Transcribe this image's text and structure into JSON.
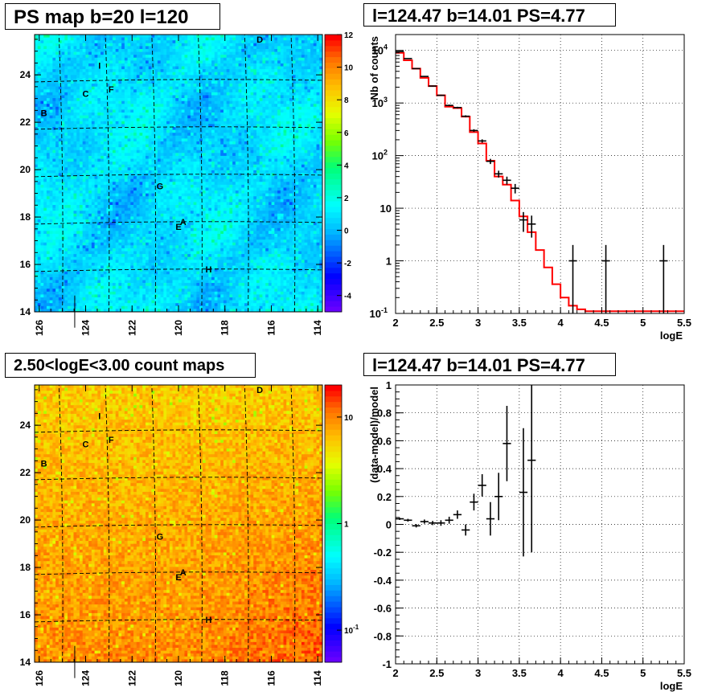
{
  "titles": {
    "top_left": "PS map b=20 l=120",
    "top_right": "l=124.47 b=14.01 PS=4.77",
    "bottom_left": "2.50<logE<3.00 count maps",
    "bottom_right": "l=124.47 b=14.01 PS=4.77"
  },
  "chart_data": [
    {
      "type": "heatmap",
      "title": "PS map b=20 l=120",
      "x_ticks": [
        "126",
        "124",
        "122",
        "120",
        "118",
        "116",
        "114"
      ],
      "y_ticks": [
        "14",
        "16",
        "18",
        "20",
        "22",
        "24"
      ],
      "xlim": [
        126.2,
        113.8
      ],
      "ylim": [
        14,
        25.7
      ],
      "colorbar": {
        "ticks": [
          "12",
          "10",
          "8",
          "6",
          "4",
          "2",
          "0",
          "-2",
          "-4"
        ],
        "range": [
          -5,
          12
        ],
        "scale": "linear"
      },
      "source_labels": [
        {
          "name": "D",
          "l": 116.5,
          "b": 25.5
        },
        {
          "name": "I",
          "l": 123.4,
          "b": 24.4
        },
        {
          "name": "F",
          "l": 122.9,
          "b": 23.4
        },
        {
          "name": "C",
          "l": 124.0,
          "b": 23.2
        },
        {
          "name": "B",
          "l": 125.8,
          "b": 22.4
        },
        {
          "name": "G",
          "l": 120.8,
          "b": 19.3
        },
        {
          "name": "A",
          "l": 119.8,
          "b": 17.8
        },
        {
          "name": "E",
          "l": 120.0,
          "b": 17.6
        },
        {
          "name": "H",
          "l": 118.7,
          "b": 15.8
        }
      ],
      "marker": {
        "l": 124.47,
        "b": 14.01
      }
    },
    {
      "type": "line",
      "title": "l=124.47 b=14.01 PS=4.77",
      "xlabel": "logE",
      "ylabel": "Nb of counts",
      "xlim": [
        2,
        5.5
      ],
      "ylim": [
        0.1,
        20000
      ],
      "yscale": "log",
      "grid": true,
      "x_ticks": [
        "2",
        "2.5",
        "3",
        "3.5",
        "4",
        "4.5",
        "5",
        "5.5"
      ],
      "y_ticks": [
        "10^4",
        "10^3",
        "10^2",
        "10",
        "1",
        "10^-1"
      ],
      "series": [
        {
          "type": "errorbar",
          "x": [
            2.05,
            2.15,
            2.25,
            2.35,
            2.45,
            2.55,
            2.65,
            2.75,
            2.85,
            2.95,
            3.05,
            3.15,
            3.25,
            3.35,
            3.45,
            3.55,
            3.65,
            4.15,
            4.55,
            5.25
          ],
          "y": [
            9500,
            7000,
            4500,
            3200,
            2100,
            1400,
            900,
            820,
            560,
            300,
            190,
            78,
            45,
            34,
            24,
            6,
            5,
            1,
            1,
            1
          ]
        },
        {
          "type": "step",
          "color": "#ff0000",
          "x": [
            2.0,
            2.1,
            2.2,
            2.3,
            2.4,
            2.5,
            2.6,
            2.7,
            2.8,
            2.9,
            3.0,
            3.1,
            3.2,
            3.3,
            3.4,
            3.5,
            3.6,
            3.7,
            3.8,
            3.9,
            4.0,
            4.1,
            4.2,
            4.3,
            4.4,
            4.5,
            4.6,
            4.7,
            4.8,
            4.9,
            5.0,
            5.1,
            5.2,
            5.3,
            5.4
          ],
          "y": [
            9000,
            6500,
            4500,
            3000,
            2100,
            1400,
            850,
            800,
            550,
            280,
            170,
            80,
            40,
            28,
            14,
            7,
            3.5,
            1.6,
            0.75,
            0.36,
            0.2,
            0.14,
            0.12,
            0.11,
            0.11,
            0.11,
            0.11,
            0.11,
            0.11,
            0.11,
            0.11,
            0.11,
            0.11,
            0.11,
            0.11
          ]
        }
      ]
    },
    {
      "type": "heatmap",
      "title": "2.50<logE<3.00 count maps",
      "x_ticks": [
        "126",
        "124",
        "122",
        "120",
        "118",
        "116",
        "114"
      ],
      "y_ticks": [
        "14",
        "16",
        "18",
        "20",
        "22",
        "24"
      ],
      "xlim": [
        126.2,
        113.8
      ],
      "ylim": [
        14,
        25.7
      ],
      "colorbar": {
        "ticks": [
          "10",
          "1",
          "10^-1"
        ],
        "range": [
          0.05,
          20
        ],
        "scale": "log"
      },
      "source_labels": [
        {
          "name": "D",
          "l": 116.5,
          "b": 25.5
        },
        {
          "name": "I",
          "l": 123.4,
          "b": 24.4
        },
        {
          "name": "F",
          "l": 122.9,
          "b": 23.4
        },
        {
          "name": "C",
          "l": 124.0,
          "b": 23.2
        },
        {
          "name": "B",
          "l": 125.8,
          "b": 22.4
        },
        {
          "name": "G",
          "l": 120.8,
          "b": 19.3
        },
        {
          "name": "A",
          "l": 119.8,
          "b": 17.8
        },
        {
          "name": "E",
          "l": 120.0,
          "b": 17.6
        },
        {
          "name": "H",
          "l": 118.7,
          "b": 15.8
        }
      ],
      "marker": {
        "l": 124.47,
        "b": 14.01
      }
    },
    {
      "type": "scatter",
      "title": "l=124.47 b=14.01 PS=4.77",
      "xlabel": "logE",
      "ylabel": "(data-model)/model",
      "xlim": [
        2,
        5.5
      ],
      "ylim": [
        -1,
        1
      ],
      "grid": true,
      "x_ticks": [
        "2",
        "2.5",
        "3",
        "3.5",
        "4",
        "4.5",
        "5",
        "5.5"
      ],
      "y_ticks": [
        "1",
        "0.8",
        "0.6",
        "0.4",
        "0.2",
        "0",
        "-0.2",
        "-0.4",
        "-0.6",
        "-0.8",
        "-1"
      ],
      "series": [
        {
          "type": "errorbar",
          "x": [
            2.05,
            2.15,
            2.25,
            2.35,
            2.45,
            2.55,
            2.65,
            2.75,
            2.85,
            2.95,
            3.05,
            3.15,
            3.25,
            3.35,
            3.55,
            3.65
          ],
          "y": [
            0.04,
            0.03,
            -0.01,
            0.02,
            0.01,
            0.01,
            0.03,
            0.07,
            -0.04,
            0.16,
            0.28,
            0.04,
            0.2,
            0.58,
            0.23,
            0.46
          ],
          "err": [
            0.008,
            0.01,
            0.012,
            0.015,
            0.015,
            0.02,
            0.025,
            0.03,
            0.04,
            0.06,
            0.08,
            0.12,
            0.17,
            0.27,
            0.46,
            0.66
          ]
        }
      ]
    }
  ]
}
